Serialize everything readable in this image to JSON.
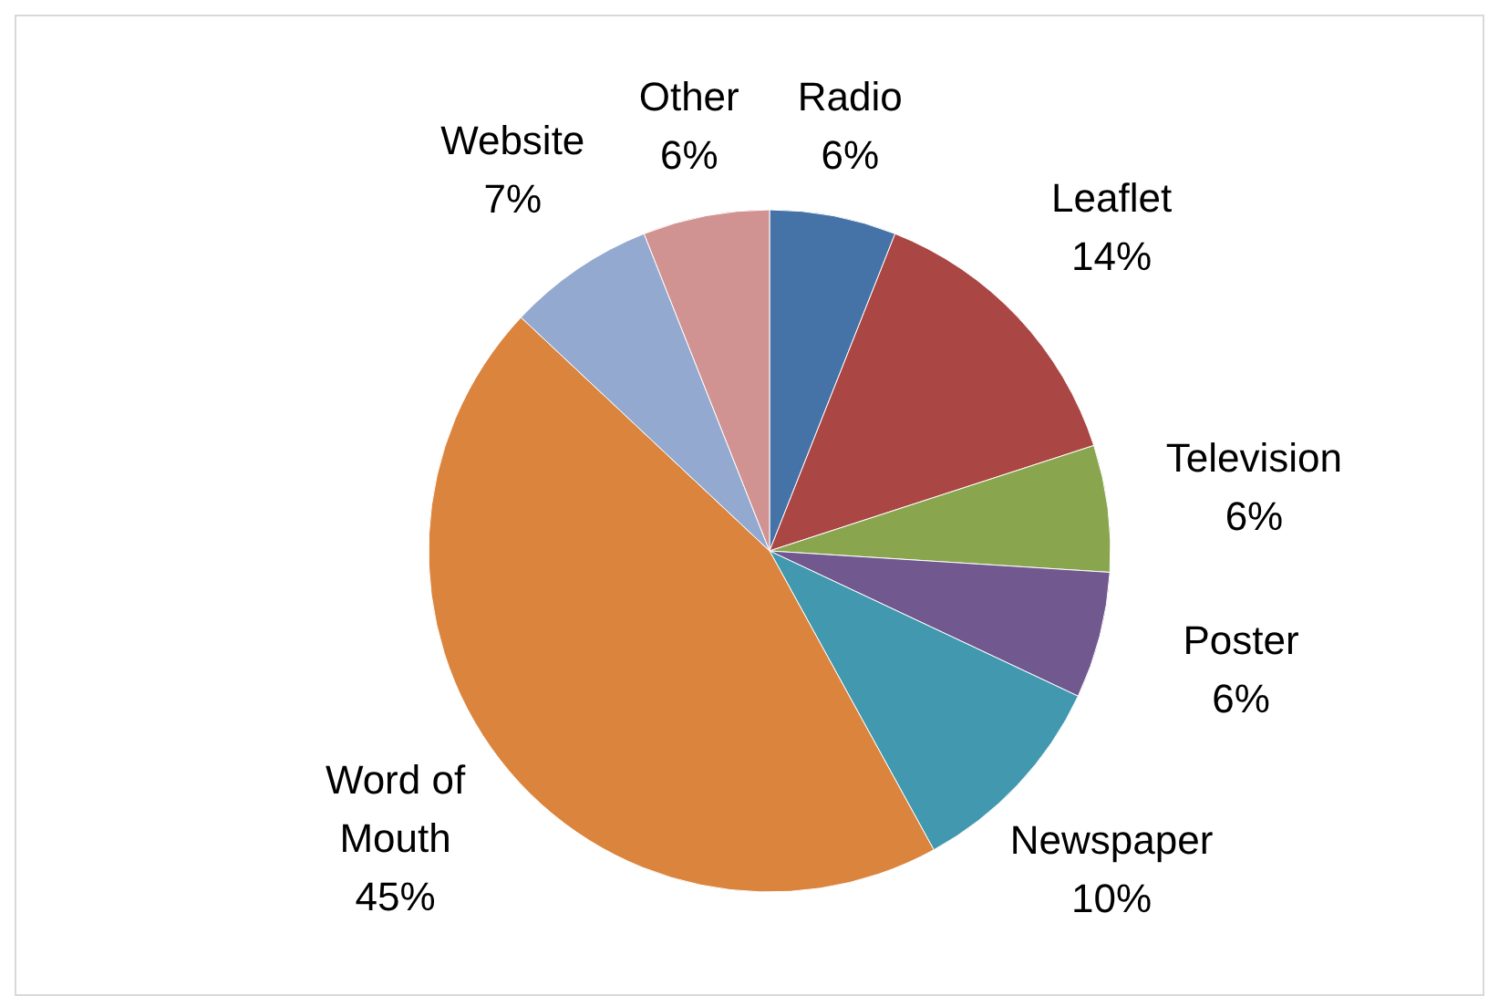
{
  "chart_data": {
    "type": "pie",
    "categories": [
      "Radio",
      "Leaflet",
      "Television",
      "Poster",
      "Newspaper",
      "Word of Mouth",
      "Website",
      "Other"
    ],
    "values": [
      6,
      14,
      6,
      6,
      10,
      45,
      7,
      6
    ],
    "value_labels": [
      "6%",
      "14%",
      "6%",
      "6%",
      "10%",
      "45%",
      "7%",
      "6%"
    ],
    "colors": [
      "#4572a7",
      "#aa4643",
      "#89a54e",
      "#71588f",
      "#4198af",
      "#db843d",
      "#93a9cf",
      "#d19392"
    ]
  }
}
